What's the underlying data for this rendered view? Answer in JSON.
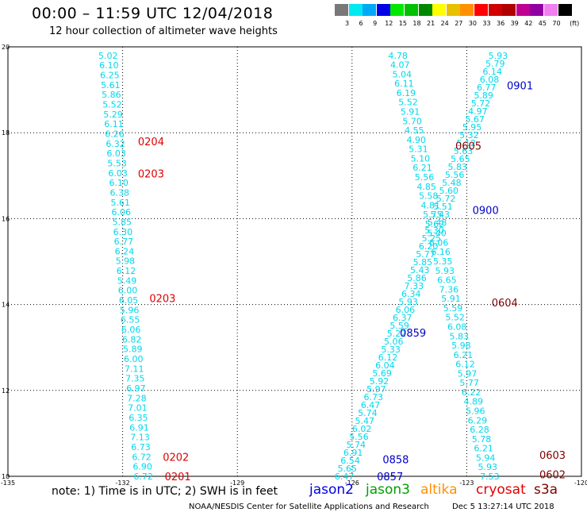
{
  "title": "00:00 – 11:59 UTC 12/04/2018",
  "subtitle": "12 hour collection of altimeter wave heights",
  "legend": {
    "unit": "(ft)",
    "entries": [
      {
        "label": "3",
        "color": "#787878"
      },
      {
        "label": "6",
        "color": "#00e8f0"
      },
      {
        "label": "9",
        "color": "#00a8f8"
      },
      {
        "label": "12",
        "color": "#0000e8"
      },
      {
        "label": "15",
        "color": "#00e800"
      },
      {
        "label": "18",
        "color": "#00c000"
      },
      {
        "label": "21",
        "color": "#008800"
      },
      {
        "label": "24",
        "color": "#ffff00"
      },
      {
        "label": "27",
        "color": "#e8c000"
      },
      {
        "label": "30",
        "color": "#ff9000"
      },
      {
        "label": "33",
        "color": "#ff0000"
      },
      {
        "label": "36",
        "color": "#d00000"
      },
      {
        "label": "39",
        "color": "#b00000"
      },
      {
        "label": "42",
        "color": "#c00090"
      },
      {
        "label": "45",
        "color": "#9000a0"
      },
      {
        "label": "70",
        "color": "#f080f0"
      },
      {
        "label": "",
        "color": "#000000"
      }
    ]
  },
  "map": {
    "x_ticks": [
      "-135",
      "-132",
      "-129",
      "-126",
      "-123",
      "-120"
    ],
    "y_ticks": [
      "20",
      "18",
      "16",
      "14",
      "12",
      "10"
    ],
    "lon_range": [
      -135,
      -120
    ],
    "lat_range": [
      10,
      20
    ],
    "tracks": [
      {
        "color": "#00d8ec",
        "start": [
          -132.38,
          19.8
        ],
        "end": [
          -131.46,
          10.0
        ],
        "values": [
          "5.02",
          "6.10",
          "6.25",
          "5.61",
          "5.86",
          "5.52",
          "5.29",
          "6.11",
          "6.26",
          "6.32",
          "6.03",
          "5.53",
          "6.03",
          "6.10",
          "6.38",
          "5.61",
          "6.06",
          "5.85",
          "6.30",
          "6.77",
          "6.24",
          "5.98",
          "6.12",
          "5.49",
          "6.00",
          "6.05",
          "5.96",
          "6.55",
          "6.06",
          "6.82",
          "5.89",
          "6.00",
          "7.11",
          "7.35",
          "6.97",
          "7.28",
          "7.01",
          "6.35",
          "6.91",
          "7.13",
          "6.73",
          "6.72",
          "6.90",
          "6.72"
        ]
      },
      {
        "color": "#00d8ec",
        "start": [
          -124.8,
          19.8
        ],
        "end": [
          -122.4,
          10.0
        ],
        "values": [
          "4.78",
          "4.07",
          "5.04",
          "6.11",
          "6.19",
          "5.52",
          "5.91",
          "5.70",
          "4.55",
          "4.90",
          "5.31",
          "5.10",
          "6.21",
          "5.56",
          "4.85",
          "5.58",
          "4.81",
          "5.75",
          "5.62",
          "5.40",
          "6.06",
          "6.16",
          "5.35",
          "5.93",
          "6.65",
          "7.36",
          "5.91",
          "5.59",
          "5.52",
          "6.08",
          "5.83",
          "5.98",
          "6.21",
          "6.12",
          "5.97",
          "5.77",
          "6.22",
          "4.89",
          "5.96",
          "6.29",
          "6.28",
          "5.78",
          "6.21",
          "5.94",
          "5.93",
          "7.53"
        ]
      },
      {
        "color": "#00d8ec",
        "start": [
          -122.18,
          19.8
        ],
        "end": [
          -126.2,
          10.0
        ],
        "values": [
          "5.93",
          "5.79",
          "6.14",
          "6.08",
          "6.77",
          "5.89",
          "5.72",
          "4.97",
          "5.67",
          "5.95",
          "5.32",
          "5.12",
          "5.63",
          "5.65",
          "5.83",
          "5.56",
          "5.48",
          "5.60",
          "5.72",
          "5.51",
          "5.43",
          "5.48",
          "5.30",
          "5.25",
          "6.20",
          "5.77",
          "5.85",
          "5.43",
          "5.86",
          "7.33",
          "6.34",
          "5.93",
          "6.06",
          "6.37",
          "5.59",
          "5.22",
          "5.06",
          "5.33",
          "6.12",
          "6.04",
          "5.69",
          "5.92",
          "5.97",
          "6.73",
          "6.47",
          "5.74",
          "5.47",
          "6.02",
          "5.56",
          "5.74",
          "6.91",
          "6.54",
          "5.65",
          "6.47"
        ]
      }
    ],
    "time_labels": [
      {
        "text": "0204",
        "lon": -131.6,
        "lat": 17.8,
        "color": "#e00000"
      },
      {
        "text": "0203",
        "lon": -131.6,
        "lat": 17.05,
        "color": "#e00000"
      },
      {
        "text": "0203",
        "lon": -131.3,
        "lat": 14.15,
        "color": "#e00000"
      },
      {
        "text": "0202",
        "lon": -130.95,
        "lat": 10.45,
        "color": "#e00000"
      },
      {
        "text": "0201",
        "lon": -130.9,
        "lat": 10.0,
        "color": "#e00000"
      },
      {
        "text": "0605",
        "lon": -123.3,
        "lat": 17.7,
        "color": "#800000"
      },
      {
        "text": "0604",
        "lon": -122.35,
        "lat": 14.05,
        "color": "#800000"
      },
      {
        "text": "0603",
        "lon": -121.1,
        "lat": 10.5,
        "color": "#800000"
      },
      {
        "text": "0602",
        "lon": -121.1,
        "lat": 10.05,
        "color": "#800000"
      },
      {
        "text": "0901",
        "lon": -121.95,
        "lat": 19.1,
        "color": "#0000c8"
      },
      {
        "text": "0900",
        "lon": -122.85,
        "lat": 16.2,
        "color": "#0000c8"
      },
      {
        "text": "0859",
        "lon": -124.75,
        "lat": 13.35,
        "color": "#0000c8"
      },
      {
        "text": "0858",
        "lon": -125.2,
        "lat": 10.4,
        "color": "#0000c8"
      },
      {
        "text": "0857",
        "lon": -125.35,
        "lat": 10.0,
        "color": "#0000c8"
      }
    ]
  },
  "note": "note:  1) Time is in UTC;  2) SWH is in feet",
  "satellites": [
    {
      "name": "jason2",
      "color": "#0000e0"
    },
    {
      "name": "jason3",
      "color": "#00a000"
    },
    {
      "name": "altika",
      "color": "#ff9000"
    },
    {
      "name": "cryosat",
      "color": "#e00000"
    },
    {
      "name": "s3a",
      "color": "#800000"
    }
  ],
  "footer": {
    "org": "NOAA/NESDIS Center for Satellite Applications and Research",
    "timestamp": "Dec  5 13:27:14 UTC 2018"
  }
}
